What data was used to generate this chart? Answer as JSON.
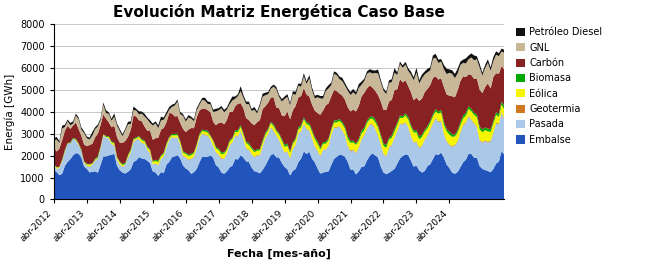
{
  "title": "Evolución Matriz Energética Caso Base",
  "xlabel": "Fecha [mes-año]",
  "ylabel": "Energía [GWh]",
  "ylim": [
    0,
    8000
  ],
  "yticks": [
    0,
    1000,
    2000,
    3000,
    4000,
    5000,
    6000,
    7000,
    8000
  ],
  "start_year": 2012,
  "start_month": 4,
  "n_months": 165,
  "series_names": [
    "Embalse",
    "Pasada",
    "Geotermia",
    "Eólica",
    "Biomasa",
    "Carbón",
    "GNL",
    "Petróleo Diesel"
  ],
  "series_colors": [
    "#2255BB",
    "#AAC8E8",
    "#D07820",
    "#F5F500",
    "#00AA00",
    "#882222",
    "#C8B898",
    "#111111"
  ],
  "legend_order": [
    7,
    6,
    5,
    4,
    3,
    2,
    1,
    0
  ],
  "tick_years": [
    2012,
    2013,
    2014,
    2015,
    2016,
    2017,
    2018,
    2019,
    2020,
    2021,
    2022,
    2023,
    2024
  ],
  "background_color": "#ffffff"
}
